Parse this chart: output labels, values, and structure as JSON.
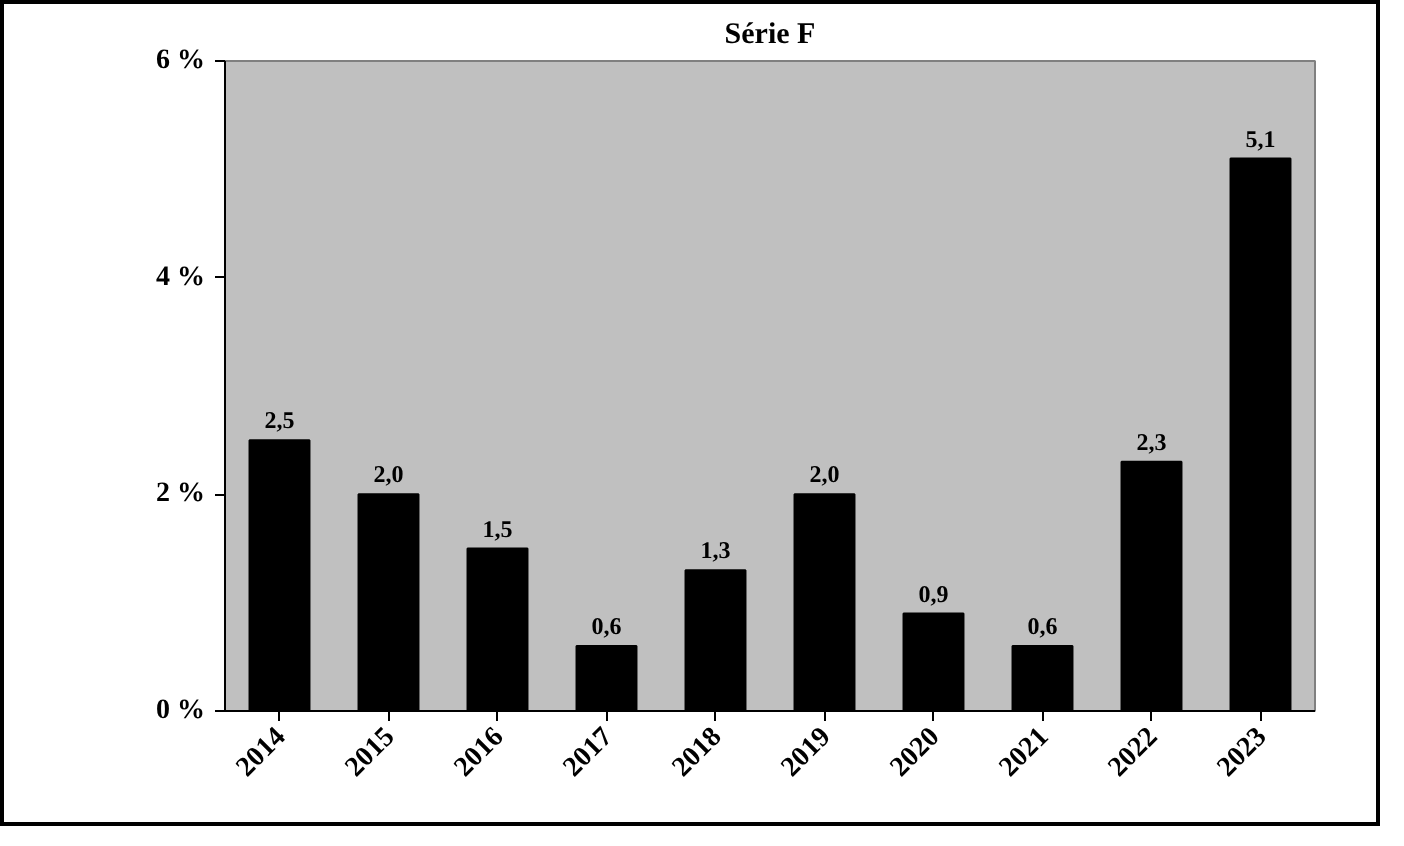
{
  "chart_data": {
    "type": "bar",
    "title": "Série F",
    "categories": [
      "2014",
      "2015",
      "2016",
      "2017",
      "2018",
      "2019",
      "2020",
      "2021",
      "2022",
      "2023"
    ],
    "values": [
      2.5,
      2.0,
      1.5,
      0.6,
      1.3,
      2.0,
      0.9,
      0.6,
      2.3,
      5.1
    ],
    "value_labels": [
      "2,5",
      "2,0",
      "1,5",
      "0,6",
      "1,3",
      "2,0",
      "0,9",
      "0,6",
      "2,3",
      "5,1"
    ],
    "color": "#000000",
    "ylim": [
      0,
      6
    ],
    "yticks": [
      {
        "value": 0,
        "label": "0 %"
      },
      {
        "value": 2,
        "label": "2 %"
      },
      {
        "value": 4,
        "label": "4 %"
      },
      {
        "value": 6,
        "label": "6 %"
      }
    ],
    "grid": false
  }
}
